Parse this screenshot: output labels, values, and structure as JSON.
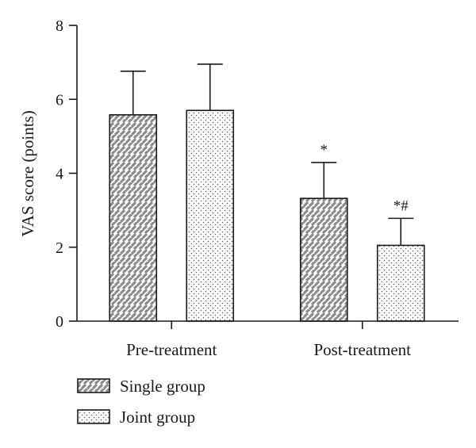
{
  "chart_data": {
    "type": "bar",
    "title": "",
    "xlabel": "",
    "ylabel": "VAS score (points)",
    "ylim": [
      0,
      8
    ],
    "yticks": [
      0,
      2,
      4,
      6,
      8
    ],
    "grid": false,
    "legend_position": "bottom-left",
    "categories": [
      "Pre-treatment",
      "Post-treatment"
    ],
    "series": [
      {
        "name": "Single group",
        "pattern": "diagonal-hatch",
        "fill_color": "#8c8c8c",
        "values": [
          5.58,
          3.32
        ],
        "error": [
          1.18,
          0.97
        ],
        "annotations": [
          "",
          "*"
        ]
      },
      {
        "name": "Joint group",
        "pattern": "dotted",
        "fill_color": "#ffffff",
        "values": [
          5.7,
          2.05
        ],
        "error": [
          1.25,
          0.73
        ],
        "annotations": [
          "",
          "*#"
        ]
      }
    ]
  }
}
